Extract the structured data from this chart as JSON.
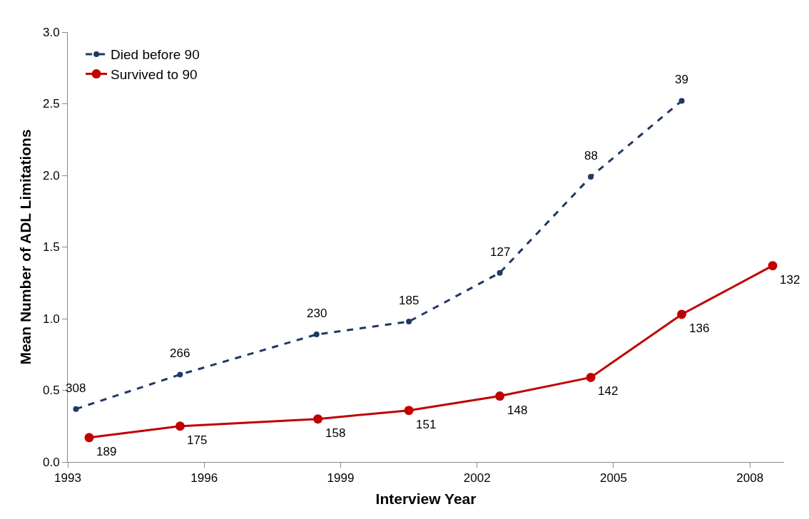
{
  "chart_data": {
    "type": "line",
    "xlabel": "Interview Year",
    "ylabel": "Mean Number of ADL Limitations",
    "xlim": [
      1993,
      2008.75
    ],
    "xticks": [
      1993,
      1996,
      1999,
      2002,
      2005,
      2008
    ],
    "ylim": [
      0,
      3
    ],
    "yticks": [
      {
        "value": 0,
        "label": "0.0"
      },
      {
        "value": 0.5,
        "label": "0.5"
      },
      {
        "value": 1,
        "label": "1.0"
      },
      {
        "value": 1.5,
        "label": "1.5"
      },
      {
        "value": 2,
        "label": "2.0"
      },
      {
        "value": 2.5,
        "label": "2.5"
      },
      {
        "value": 3,
        "label": "3.0"
      }
    ],
    "legend": "top left",
    "marker": "circle",
    "series": [
      {
        "name": "Died before 90",
        "color": "#1f3864",
        "line_style": "dashed",
        "x": [
          1993.18,
          1995.47,
          1998.47,
          2000.5,
          2002.5,
          2004.5,
          2006.5
        ],
        "values": [
          0.37,
          0.61,
          0.89,
          0.98,
          1.32,
          1.99,
          2.52
        ]
      },
      {
        "name": "Survived to 90",
        "color": "#c00000",
        "line_style": "solid",
        "x": [
          1993.47,
          1995.47,
          1998.5,
          2000.5,
          2002.5,
          2004.5,
          2006.5,
          2008.5
        ],
        "values": [
          0.17,
          0.25,
          0.3,
          0.36,
          0.46,
          0.59,
          1.03,
          1.37
        ]
      }
    ],
    "annotations": [
      {
        "text": "308",
        "x": 1993.18,
        "y": 0.37
      },
      {
        "text": "266",
        "x": 1995.47,
        "y": 0.61
      },
      {
        "text": "230",
        "x": 1998.47,
        "y": 0.89
      },
      {
        "text": "185",
        "x": 2000.5,
        "y": 0.98
      },
      {
        "text": "127",
        "x": 2002.5,
        "y": 1.32
      },
      {
        "text": "88",
        "x": 2004.5,
        "y": 1.99
      },
      {
        "text": "39",
        "x": 2006.5,
        "y": 2.52
      },
      {
        "text": "189",
        "x": 1993.47,
        "y": 0.17
      },
      {
        "text": "175",
        "x": 1995.47,
        "y": 0.25
      },
      {
        "text": "158",
        "x": 1998.5,
        "y": 0.3
      },
      {
        "text": "151",
        "x": 2000.5,
        "y": 0.36
      },
      {
        "text": "148",
        "x": 2002.5,
        "y": 0.46
      },
      {
        "text": "142",
        "x": 2004.5,
        "y": 0.59
      },
      {
        "text": "136",
        "x": 2006.5,
        "y": 1.03
      },
      {
        "text": "132",
        "x": 2008.5,
        "y": 1.37
      }
    ]
  }
}
